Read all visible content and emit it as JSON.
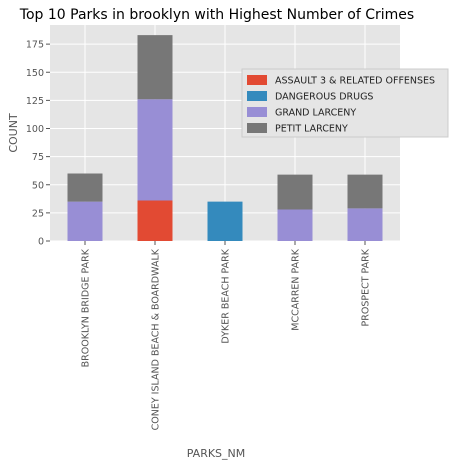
{
  "chart_data": {
    "type": "bar",
    "stacked": true,
    "title": "Top 10 Parks in brooklyn with Highest Number of Crimes",
    "xlabel": "PARKS_NM",
    "ylabel": "COUNT",
    "ylim": [
      0,
      192
    ],
    "yticks": [
      0,
      25,
      50,
      75,
      100,
      125,
      150,
      175
    ],
    "grid": true,
    "legend_position": "right",
    "categories": [
      "BROOKLYN BRIDGE PARK",
      "CONEY ISLAND BEACH & BOARDWALK",
      "DYKER BEACH PARK",
      "MCCARREN PARK",
      "PROSPECT PARK"
    ],
    "series": [
      {
        "name": "ASSAULT 3 & RELATED OFFENSES",
        "color": "#E24A33",
        "values": [
          0,
          36,
          0,
          0,
          0
        ]
      },
      {
        "name": "DANGEROUS DRUGS",
        "color": "#348ABD",
        "values": [
          0,
          0,
          35,
          0,
          0
        ]
      },
      {
        "name": "GRAND LARCENY",
        "color": "#988ED5",
        "values": [
          35,
          90,
          0,
          28,
          29
        ]
      },
      {
        "name": "PETIT LARCENY",
        "color": "#777777",
        "values": [
          25,
          57,
          0,
          31,
          30
        ]
      }
    ]
  }
}
